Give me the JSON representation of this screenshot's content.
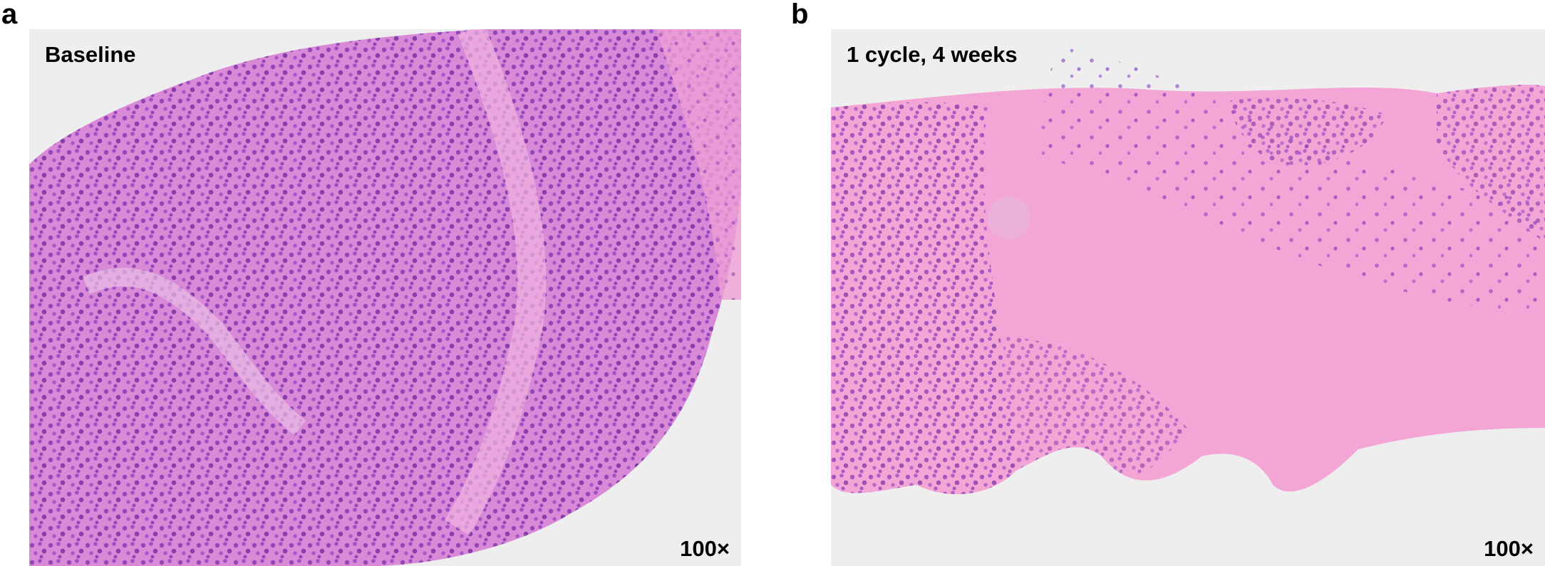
{
  "panels": [
    {
      "letter": "a",
      "caption": "Baseline",
      "magnification": "100×"
    },
    {
      "letter": "b",
      "caption": "1 cycle, 4 weeks",
      "magnification": "100×"
    }
  ]
}
